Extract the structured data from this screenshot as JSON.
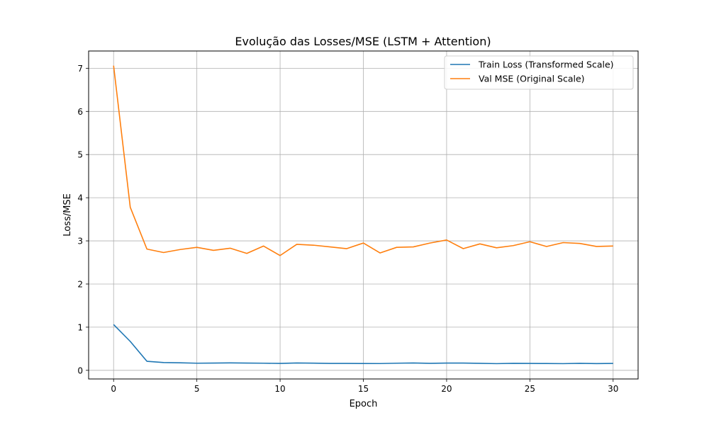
{
  "chart_data": {
    "type": "line",
    "title": "Evolução das Losses/MSE (LSTM + Attention)",
    "xlabel": "Epoch",
    "ylabel": "Loss/MSE",
    "xlim": [
      -1.5,
      31.5
    ],
    "ylim": [
      -0.2,
      7.4
    ],
    "x_ticks": [
      0,
      5,
      10,
      15,
      20,
      25,
      30
    ],
    "y_ticks": [
      0,
      1,
      2,
      3,
      4,
      5,
      6,
      7
    ],
    "grid": true,
    "legend_position": "top-right",
    "x": [
      0,
      1,
      2,
      3,
      4,
      5,
      6,
      7,
      8,
      9,
      10,
      11,
      12,
      13,
      14,
      15,
      16,
      17,
      18,
      19,
      20,
      21,
      22,
      23,
      24,
      25,
      26,
      27,
      28,
      29,
      30
    ],
    "series": [
      {
        "name": "Train Loss (Transformed Scale)",
        "color": "#1f77b4",
        "values": [
          1.06,
          0.67,
          0.21,
          0.18,
          0.175,
          0.165,
          0.168,
          0.172,
          0.168,
          0.165,
          0.16,
          0.17,
          0.166,
          0.16,
          0.16,
          0.158,
          0.157,
          0.165,
          0.17,
          0.162,
          0.168,
          0.168,
          0.163,
          0.155,
          0.162,
          0.16,
          0.158,
          0.155,
          0.162,
          0.156,
          0.16
        ]
      },
      {
        "name": "Val MSE (Original Scale)",
        "color": "#ff7f0e",
        "values": [
          7.06,
          3.78,
          2.81,
          2.73,
          2.8,
          2.85,
          2.78,
          2.83,
          2.71,
          2.88,
          2.66,
          2.92,
          2.9,
          2.86,
          2.82,
          2.95,
          2.72,
          2.85,
          2.86,
          2.95,
          3.02,
          2.82,
          2.93,
          2.84,
          2.89,
          2.98,
          2.87,
          2.96,
          2.94,
          2.87,
          2.88
        ]
      }
    ]
  }
}
